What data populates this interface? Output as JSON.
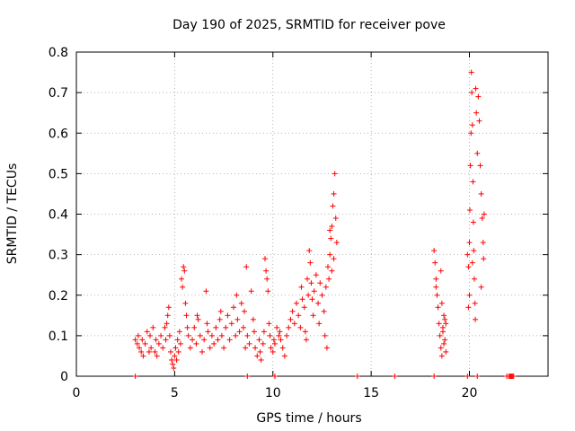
{
  "chart_data": {
    "type": "scatter",
    "title": "Day 190 of 2025, SRMTID for receiver pove",
    "xlabel": "GPS time / hours",
    "ylabel": "SRMTID / TECUs",
    "xlim": [
      0,
      24
    ],
    "ylim": [
      0,
      0.8
    ],
    "x_ticks": [
      0,
      5,
      10,
      15,
      20
    ],
    "y_ticks": [
      0,
      0.1,
      0.2,
      0.3,
      0.4,
      0.5,
      0.6,
      0.7,
      0.8
    ],
    "x_tick_labels": [
      "0",
      "5",
      "10",
      "15",
      "20"
    ],
    "y_tick_labels": [
      "0",
      "0.1",
      "0.2",
      "0.3",
      "0.4",
      "0.5",
      "0.6",
      "0.7",
      "0.8"
    ],
    "grid": true,
    "marker": "+",
    "color": "#ff0000",
    "series": [
      {
        "name": "SRMTID",
        "points": [
          [
            3.0,
            0.09
          ],
          [
            3.1,
            0.08
          ],
          [
            3.15,
            0.1
          ],
          [
            3.2,
            0.07
          ],
          [
            3.3,
            0.06
          ],
          [
            3.35,
            0.09
          ],
          [
            3.4,
            0.05
          ],
          [
            3.5,
            0.08
          ],
          [
            3.6,
            0.11
          ],
          [
            3.7,
            0.06
          ],
          [
            3.75,
            0.1
          ],
          [
            3.8,
            0.07
          ],
          [
            3.9,
            0.12
          ],
          [
            4.0,
            0.06
          ],
          [
            4.05,
            0.09
          ],
          [
            4.1,
            0.05
          ],
          [
            4.2,
            0.08
          ],
          [
            4.3,
            0.1
          ],
          [
            4.4,
            0.07
          ],
          [
            4.5,
            0.12
          ],
          [
            4.55,
            0.09
          ],
          [
            4.6,
            0.13
          ],
          [
            4.65,
            0.15
          ],
          [
            4.7,
            0.17
          ],
          [
            4.75,
            0.1
          ],
          [
            4.8,
            0.06
          ],
          [
            4.85,
            0.04
          ],
          [
            4.9,
            0.03
          ],
          [
            4.95,
            0.02
          ],
          [
            5.0,
            0.05
          ],
          [
            5.05,
            0.07
          ],
          [
            5.1,
            0.04
          ],
          [
            5.15,
            0.09
          ],
          [
            5.2,
            0.06
          ],
          [
            5.25,
            0.11
          ],
          [
            5.3,
            0.08
          ],
          [
            5.35,
            0.24
          ],
          [
            5.4,
            0.22
          ],
          [
            5.45,
            0.27
          ],
          [
            5.5,
            0.26
          ],
          [
            5.55,
            0.18
          ],
          [
            5.6,
            0.15
          ],
          [
            5.65,
            0.12
          ],
          [
            5.7,
            0.1
          ],
          [
            5.8,
            0.07
          ],
          [
            5.9,
            0.09
          ],
          [
            6.0,
            0.12
          ],
          [
            6.1,
            0.08
          ],
          [
            6.15,
            0.15
          ],
          [
            6.2,
            0.14
          ],
          [
            6.3,
            0.1
          ],
          [
            6.4,
            0.06
          ],
          [
            6.5,
            0.09
          ],
          [
            6.6,
            0.21
          ],
          [
            6.65,
            0.13
          ],
          [
            6.7,
            0.11
          ],
          [
            6.8,
            0.07
          ],
          [
            6.9,
            0.1
          ],
          [
            7.0,
            0.08
          ],
          [
            7.1,
            0.12
          ],
          [
            7.2,
            0.09
          ],
          [
            7.3,
            0.14
          ],
          [
            7.35,
            0.16
          ],
          [
            7.4,
            0.1
          ],
          [
            7.5,
            0.07
          ],
          [
            7.6,
            0.12
          ],
          [
            7.7,
            0.15
          ],
          [
            7.8,
            0.09
          ],
          [
            7.9,
            0.13
          ],
          [
            8.0,
            0.17
          ],
          [
            8.1,
            0.1
          ],
          [
            8.15,
            0.2
          ],
          [
            8.2,
            0.14
          ],
          [
            8.3,
            0.11
          ],
          [
            8.4,
            0.18
          ],
          [
            8.5,
            0.12
          ],
          [
            8.55,
            0.16
          ],
          [
            8.6,
            0.07
          ],
          [
            8.65,
            0.27
          ],
          [
            8.7,
            0.1
          ],
          [
            8.8,
            0.08
          ],
          [
            8.9,
            0.21
          ],
          [
            9.0,
            0.14
          ],
          [
            9.05,
            0.11
          ],
          [
            9.1,
            0.07
          ],
          [
            9.2,
            0.05
          ],
          [
            9.3,
            0.09
          ],
          [
            9.35,
            0.06
          ],
          [
            9.4,
            0.04
          ],
          [
            9.5,
            0.08
          ],
          [
            9.55,
            0.11
          ],
          [
            9.6,
            0.29
          ],
          [
            9.65,
            0.26
          ],
          [
            9.7,
            0.24
          ],
          [
            9.75,
            0.21
          ],
          [
            9.8,
            0.13
          ],
          [
            9.85,
            0.1
          ],
          [
            9.9,
            0.07
          ],
          [
            10.0,
            0.06
          ],
          [
            10.05,
            0.09
          ],
          [
            10.1,
            0.08
          ],
          [
            10.2,
            0.12
          ],
          [
            10.3,
            0.1
          ],
          [
            10.35,
            0.11
          ],
          [
            10.4,
            0.09
          ],
          [
            10.5,
            0.07
          ],
          [
            10.6,
            0.05
          ],
          [
            10.7,
            0.1
          ],
          [
            10.8,
            0.12
          ],
          [
            10.9,
            0.14
          ],
          [
            11.0,
            0.16
          ],
          [
            11.1,
            0.13
          ],
          [
            11.2,
            0.18
          ],
          [
            11.3,
            0.15
          ],
          [
            11.4,
            0.12
          ],
          [
            11.45,
            0.22
          ],
          [
            11.5,
            0.19
          ],
          [
            11.6,
            0.17
          ],
          [
            11.65,
            0.11
          ],
          [
            11.7,
            0.09
          ],
          [
            11.75,
            0.24
          ],
          [
            11.8,
            0.2
          ],
          [
            11.85,
            0.31
          ],
          [
            11.9,
            0.28
          ],
          [
            11.95,
            0.23
          ],
          [
            12.0,
            0.19
          ],
          [
            12.05,
            0.15
          ],
          [
            12.1,
            0.21
          ],
          [
            12.2,
            0.25
          ],
          [
            12.3,
            0.18
          ],
          [
            12.35,
            0.13
          ],
          [
            12.4,
            0.23
          ],
          [
            12.5,
            0.2
          ],
          [
            12.6,
            0.16
          ],
          [
            12.65,
            0.1
          ],
          [
            12.7,
            0.22
          ],
          [
            12.75,
            0.07
          ],
          [
            12.8,
            0.27
          ],
          [
            12.85,
            0.24
          ],
          [
            12.9,
            0.3
          ],
          [
            12.95,
            0.34
          ],
          [
            13.0,
            0.37
          ],
          [
            13.05,
            0.42
          ],
          [
            13.1,
            0.45
          ],
          [
            13.15,
            0.5
          ],
          [
            13.2,
            0.39
          ],
          [
            13.25,
            0.33
          ],
          [
            13.1,
            0.29
          ],
          [
            13.0,
            0.26
          ],
          [
            12.9,
            0.36
          ],
          [
            18.2,
            0.31
          ],
          [
            18.25,
            0.28
          ],
          [
            18.3,
            0.24
          ],
          [
            18.35,
            0.2
          ],
          [
            18.4,
            0.17
          ],
          [
            18.45,
            0.13
          ],
          [
            18.5,
            0.1
          ],
          [
            18.55,
            0.07
          ],
          [
            18.6,
            0.05
          ],
          [
            18.65,
            0.12
          ],
          [
            18.7,
            0.15
          ],
          [
            18.75,
            0.09
          ],
          [
            18.8,
            0.13
          ],
          [
            18.3,
            0.22
          ],
          [
            18.55,
            0.26
          ],
          [
            18.6,
            0.18
          ],
          [
            18.65,
            0.11
          ],
          [
            18.7,
            0.08
          ],
          [
            18.75,
            0.14
          ],
          [
            18.8,
            0.06
          ],
          [
            19.9,
            0.3
          ],
          [
            19.95,
            0.27
          ],
          [
            20.0,
            0.33
          ],
          [
            20.02,
            0.41
          ],
          [
            20.05,
            0.52
          ],
          [
            20.08,
            0.6
          ],
          [
            20.1,
            0.75
          ],
          [
            20.12,
            0.7
          ],
          [
            20.15,
            0.62
          ],
          [
            20.18,
            0.48
          ],
          [
            20.2,
            0.38
          ],
          [
            20.22,
            0.31
          ],
          [
            20.25,
            0.24
          ],
          [
            20.28,
            0.18
          ],
          [
            20.3,
            0.14
          ],
          [
            20.32,
            0.71
          ],
          [
            20.35,
            0.65
          ],
          [
            20.4,
            0.55
          ],
          [
            20.45,
            0.69
          ],
          [
            20.5,
            0.63
          ],
          [
            20.55,
            0.52
          ],
          [
            20.6,
            0.45
          ],
          [
            20.65,
            0.39
          ],
          [
            20.7,
            0.33
          ],
          [
            20.72,
            0.29
          ],
          [
            20.75,
            0.4
          ],
          [
            20.6,
            0.22
          ],
          [
            19.95,
            0.17
          ],
          [
            20.0,
            0.2
          ],
          [
            20.15,
            0.28
          ],
          [
            3.0,
            0.0
          ],
          [
            8.7,
            0.0
          ],
          [
            10.1,
            0.0
          ],
          [
            14.3,
            0.0
          ],
          [
            16.2,
            0.0
          ],
          [
            18.2,
            0.0
          ],
          [
            19.9,
            0.0
          ],
          [
            20.4,
            0.0
          ],
          [
            21.9,
            0.0
          ],
          [
            22.0,
            0.0
          ],
          [
            22.05,
            0.0
          ],
          [
            22.1,
            0.0
          ],
          [
            22.15,
            0.0
          ],
          [
            22.2,
            0.0
          ],
          [
            22.25,
            0.0
          ]
        ]
      }
    ]
  }
}
